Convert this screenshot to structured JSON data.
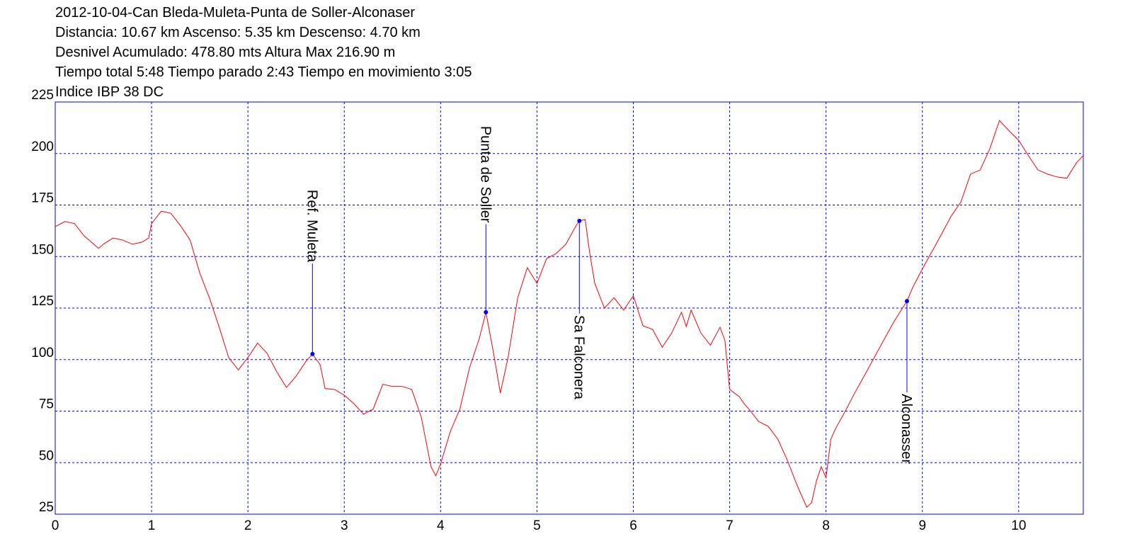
{
  "chart_data": {
    "type": "line",
    "title": "2012-10-04-Can Bleda-Muleta-Punta de Soller-Alconaser",
    "subtitle": [
      "Distancia: 10.67 km Ascenso: 5.35 km Descenso: 4.70 km",
      "Desnivel Acumulado: 478.80 mts  Altura Max 216.90 m",
      "Tiempo total 5:48 Tiempo parado 2:43 Tiempo en movimiento 3:05",
      "Indice IBP 38 DC"
    ],
    "x": [
      0,
      0.1,
      0.2,
      0.3,
      0.4,
      0.45,
      0.5,
      0.6,
      0.7,
      0.8,
      0.9,
      0.97,
      1.0,
      1.1,
      1.2,
      1.3,
      1.4,
      1.5,
      1.6,
      1.7,
      1.8,
      1.9,
      2.0,
      2.1,
      2.2,
      2.3,
      2.4,
      2.5,
      2.6,
      2.67,
      2.75,
      2.8,
      2.9,
      3.0,
      3.1,
      3.2,
      3.3,
      3.4,
      3.5,
      3.6,
      3.7,
      3.8,
      3.9,
      3.95,
      4.0,
      4.1,
      4.2,
      4.3,
      4.4,
      4.47,
      4.55,
      4.62,
      4.7,
      4.8,
      4.9,
      5.0,
      5.1,
      5.2,
      5.3,
      5.4,
      5.44,
      5.5,
      5.55,
      5.6,
      5.7,
      5.8,
      5.9,
      6.0,
      6.1,
      6.2,
      6.3,
      6.4,
      6.5,
      6.55,
      6.6,
      6.7,
      6.8,
      6.9,
      6.95,
      7.0,
      7.1,
      7.15,
      7.2,
      7.3,
      7.4,
      7.5,
      7.6,
      7.7,
      7.8,
      7.85,
      7.9,
      7.95,
      8.0,
      8.05,
      8.1,
      8.2,
      8.3,
      8.4,
      8.5,
      8.6,
      8.7,
      8.84,
      8.9,
      9.0,
      9.1,
      9.2,
      9.3,
      9.4,
      9.5,
      9.6,
      9.7,
      9.8,
      9.9,
      10.0,
      10.1,
      10.2,
      10.3,
      10.4,
      10.5,
      10.6,
      10.67
    ],
    "series": [
      {
        "name": "Altura",
        "color": "#ff0000",
        "values": [
          164.5,
          167,
          166,
          160,
          156,
          154,
          156,
          159,
          158,
          156,
          157,
          159,
          166,
          172,
          171,
          165,
          158,
          142,
          130,
          116,
          101,
          95,
          101,
          108,
          103,
          94,
          86.5,
          92,
          99,
          102.7,
          97.5,
          86,
          85.5,
          82.7,
          78.6,
          73.5,
          76,
          88,
          87,
          87,
          85.5,
          72,
          48,
          43.6,
          49.4,
          65,
          76,
          96,
          110,
          123,
          103,
          83.8,
          101,
          130,
          144.6,
          137,
          149,
          151.5,
          156,
          164.5,
          167.3,
          168,
          151,
          137,
          125,
          130,
          124,
          131,
          116.4,
          114.7,
          106,
          113,
          123,
          116,
          124,
          113,
          107,
          115.7,
          109.5,
          85.5,
          82,
          78.6,
          76,
          70,
          67.6,
          61.4,
          51,
          39,
          28.4,
          30.5,
          41,
          48,
          42.7,
          61.4,
          66.6,
          75,
          84,
          92.4,
          101,
          109.5,
          118,
          128.4,
          135,
          144,
          152.5,
          161,
          169.7,
          176.5,
          190,
          192,
          202.3,
          216,
          211,
          206.4,
          199,
          192,
          190,
          188.6,
          188,
          195.5,
          199
        ]
      }
    ],
    "waypoints": [
      {
        "name": "Ref. Muleta",
        "x": 2.67,
        "y": 102.7
      },
      {
        "name": "Punta de Soller",
        "x": 4.47,
        "y": 123
      },
      {
        "name": "Sa Falconera",
        "x": 5.44,
        "y": 167.3
      },
      {
        "name": "Alconasser",
        "x": 8.84,
        "y": 128.4
      }
    ],
    "waypoint_color": "#0000ff",
    "xlim": [
      0,
      10.67
    ],
    "xticks": [
      0,
      1,
      2,
      3,
      4,
      5,
      6,
      7,
      8,
      9,
      10
    ],
    "ylim": [
      25,
      225
    ],
    "yticks": [
      25,
      50,
      75,
      100,
      125,
      150,
      175,
      200,
      225
    ],
    "grid": true
  }
}
